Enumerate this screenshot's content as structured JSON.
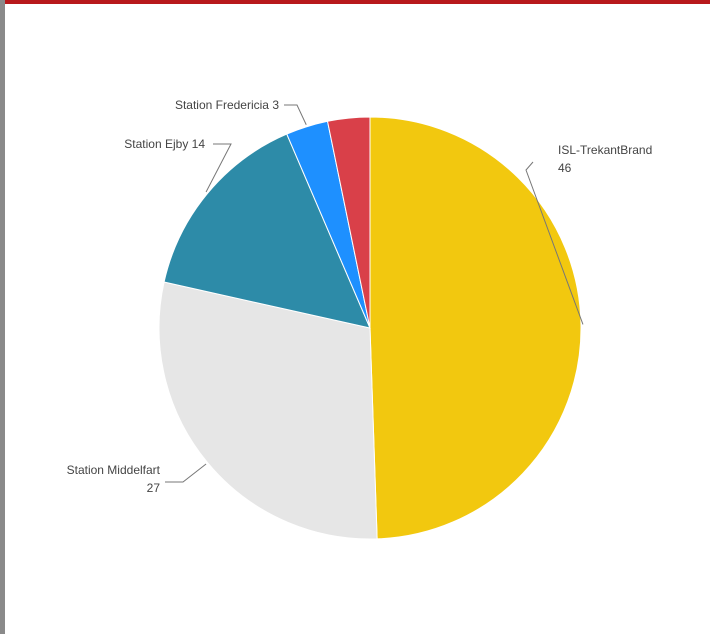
{
  "chart_data": {
    "type": "pie",
    "start": "top-clockwise",
    "slices": [
      {
        "label": "ISL-TrekantBrand",
        "value": 46,
        "color": "#F2C80F"
      },
      {
        "label": "Station Middelfart",
        "value": 27,
        "color": "#E6E6E6"
      },
      {
        "label": "Station Ejby",
        "value": 14,
        "color": "#2D8BA8"
      },
      {
        "label": "Station Fredericia",
        "value": 3,
        "color": "#1E90FF"
      },
      {
        "label": "",
        "value": 3,
        "color": "#D94049"
      }
    ],
    "data_labels": [
      {
        "slice": 0,
        "name": "ISL-TrekantBrand",
        "value": "46"
      },
      {
        "slice": 1,
        "name": "Station Middelfart",
        "value": "27"
      },
      {
        "slice": 2,
        "name": "Station Ejby",
        "value": "14"
      },
      {
        "slice": 3,
        "name": "Station Fredericia",
        "value": "3"
      }
    ]
  }
}
